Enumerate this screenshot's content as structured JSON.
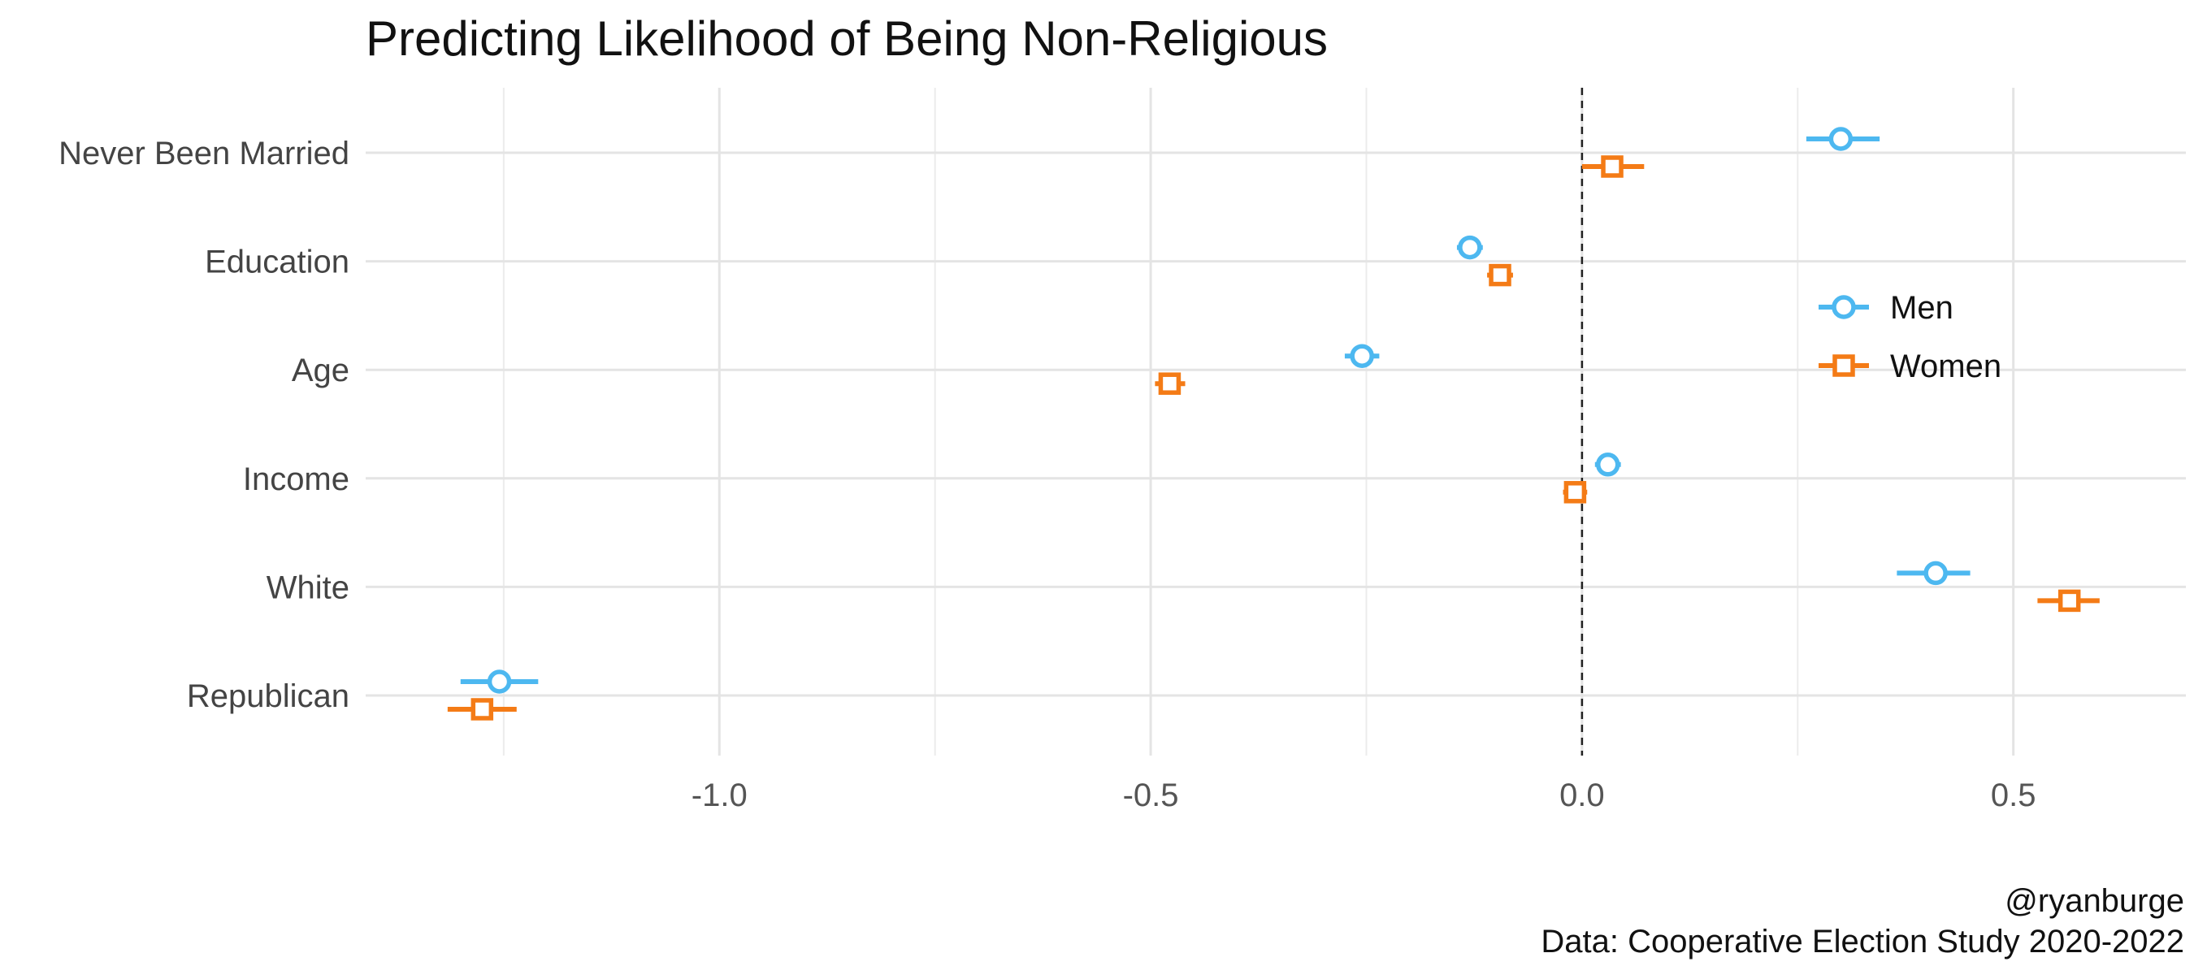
{
  "chart_data": {
    "type": "scatter",
    "subtype": "coefficient-plot",
    "title": "Predicting Likelihood of Being Non-Religious",
    "xlabel": "",
    "ylabel": "",
    "categories": [
      "Never Been Married",
      "Education",
      "Age",
      "Income",
      "White",
      "Republican"
    ],
    "x_ticks": [
      {
        "value": -1.0,
        "label": "-1.0"
      },
      {
        "value": -0.5,
        "label": "-0.5"
      },
      {
        "value": 0.0,
        "label": "0.0"
      },
      {
        "value": 0.5,
        "label": "0.5"
      }
    ],
    "xlim": [
      -1.41,
      0.7
    ],
    "reference_line": 0,
    "grid": true,
    "legend_position": "right",
    "series": [
      {
        "name": "Men",
        "color": "#4DB8F0",
        "marker": "circle",
        "values": [
          0.3,
          -0.13,
          -0.255,
          0.03,
          0.41,
          -1.255
        ],
        "lower": [
          0.26,
          -0.145,
          -0.275,
          0.015,
          0.365,
          -1.3
        ],
        "upper": [
          0.345,
          -0.115,
          -0.235,
          0.045,
          0.45,
          -1.21
        ]
      },
      {
        "name": "Women",
        "color": "#F47B16",
        "marker": "square",
        "values": [
          0.035,
          -0.095,
          -0.478,
          -0.008,
          0.565,
          -1.275
        ],
        "lower": [
          0.0,
          -0.11,
          -0.495,
          -0.022,
          0.528,
          -1.315
        ],
        "upper": [
          0.072,
          -0.08,
          -0.46,
          0.006,
          0.6,
          -1.235
        ]
      }
    ]
  },
  "caption": {
    "line1": "@ryanburge",
    "line2": "Data: Cooperative Election Study 2020-2022"
  }
}
